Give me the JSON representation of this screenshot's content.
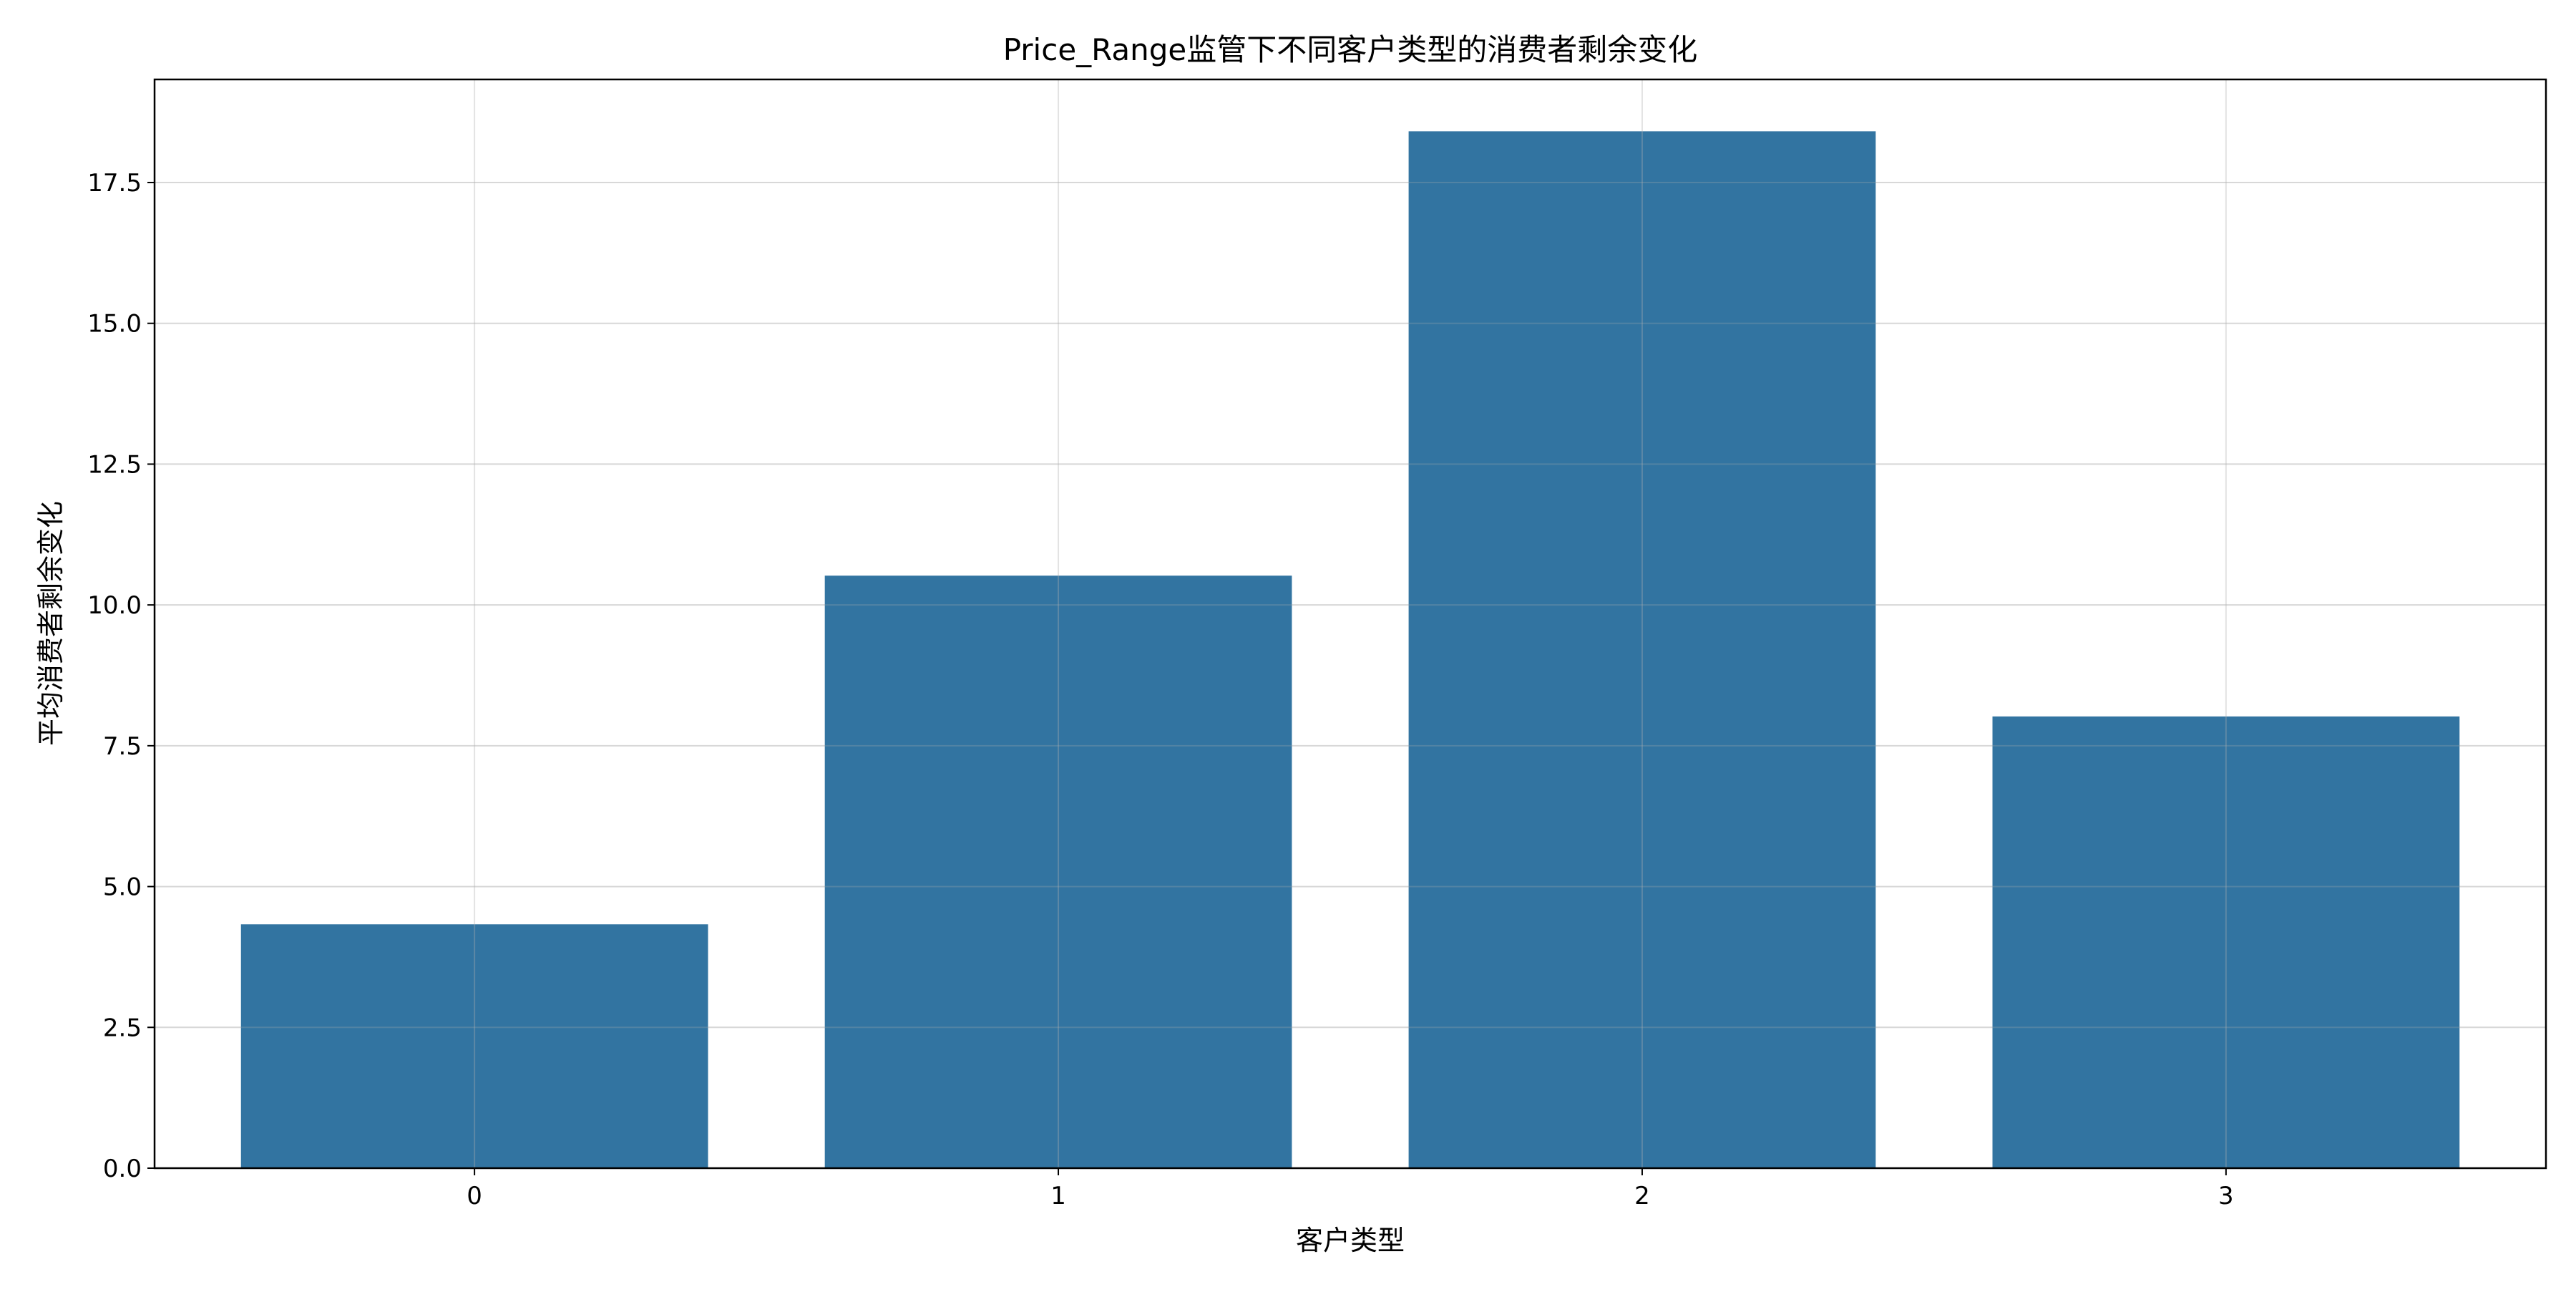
{
  "chart_data": {
    "type": "bar",
    "title": "Price_Range监管下不同客户类型的消费者剩余变化",
    "xlabel": "客户类型",
    "ylabel": "平均消费者剩余变化",
    "categories": [
      "0",
      "1",
      "2",
      "3"
    ],
    "values": [
      4.33,
      10.52,
      18.41,
      8.02
    ],
    "ylim": [
      0,
      19.33
    ],
    "yticks": [
      0.0,
      2.5,
      5.0,
      7.5,
      10.0,
      12.5,
      15.0,
      17.5
    ],
    "ytick_labels": [
      "0.0",
      "2.5",
      "5.0",
      "7.5",
      "10.0",
      "12.5",
      "15.0",
      "17.5"
    ],
    "grid": true,
    "legend": "none",
    "bar_color": "#3274a1",
    "grid_color": "#e6e6e6"
  }
}
